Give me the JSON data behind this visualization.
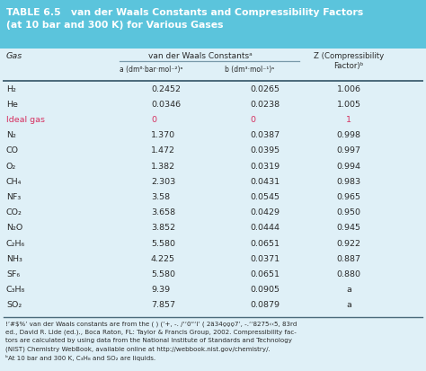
{
  "title_line1": "TABLE 6.5   van der Waals Constants and Compressibility Factors",
  "title_line2": "(at 10 bar and 300 K) for Various Gases",
  "col_header_group": "van der Waals Constantsᵃ",
  "col_header_sub1": "a (dm⁶·bar·mol⁻²)ᵃ",
  "col_header_sub2": "b (dm³·mol⁻¹)ᵃ",
  "col_header_z": "Z (Compressibility\nFactor)ᵇ",
  "col_header_gas": "Gas",
  "rows": [
    {
      "gas": "H₂",
      "a": "0.2452",
      "b": "0.0265",
      "z": "1.006",
      "highlight": false
    },
    {
      "gas": "He",
      "a": "0.0346",
      "b": "0.0238",
      "z": "1.005",
      "highlight": false
    },
    {
      "gas": "Ideal gas",
      "a": "0",
      "b": "0",
      "z": "1",
      "highlight": true
    },
    {
      "gas": "N₂",
      "a": "1.370",
      "b": "0.0387",
      "z": "0.998",
      "highlight": false
    },
    {
      "gas": "CO",
      "a": "1.472",
      "b": "0.0395",
      "z": "0.997",
      "highlight": false
    },
    {
      "gas": "O₂",
      "a": "1.382",
      "b": "0.0319",
      "z": "0.994",
      "highlight": false
    },
    {
      "gas": "CH₄",
      "a": "2.303",
      "b": "0.0431",
      "z": "0.983",
      "highlight": false
    },
    {
      "gas": "NF₃",
      "a": "3.58",
      "b": "0.0545",
      "z": "0.965",
      "highlight": false
    },
    {
      "gas": "CO₂",
      "a": "3.658",
      "b": "0.0429",
      "z": "0.950",
      "highlight": false
    },
    {
      "gas": "N₂O",
      "a": "3.852",
      "b": "0.0444",
      "z": "0.945",
      "highlight": false
    },
    {
      "gas": "C₂H₆",
      "a": "5.580",
      "b": "0.0651",
      "z": "0.922",
      "highlight": false
    },
    {
      "gas": "NH₃",
      "a": "4.225",
      "b": "0.0371",
      "z": "0.887",
      "highlight": false
    },
    {
      "gas": "SF₆",
      "a": "5.580",
      "b": "0.0651",
      "z": "0.880",
      "highlight": false
    },
    {
      "gas": "C₃H₈",
      "a": "9.39",
      "b": "0.0905",
      "z": "a",
      "highlight": false
    },
    {
      "gas": "SO₂",
      "a": "7.857",
      "b": "0.0879",
      "z": "a",
      "highlight": false
    }
  ],
  "footnotes": [
    "!’#$%’ van der Waals constants are from the ( ) (’+, -. /‘‘0“‘I’ ( 2ä34ǫǫǫ7’, -.‘‘8275‹‹5, 83rd",
    "ed., David R. Lide (ed.)., Boca Raton, FL: Taylor & Francis Group, 2002. Compressibility fac-",
    "tors are calculated by using data from the National Institute of Standards and Technology",
    "(NIST) Chemistry WebBook, available online at http://webbook.nist.gov/chemistry/.",
    "ᵇAt 10 bar and 300 K, C₃H₈ and SO₂ are liquids."
  ],
  "title_bg": "#5bc4dc",
  "body_bg": "#dff0f7",
  "highlight_color": "#d63060",
  "text_color": "#2a2a2a",
  "title_text_color": "#ffffff",
  "line_color": "#7a9aaa",
  "footnote_text_color": "#2a2a2a"
}
